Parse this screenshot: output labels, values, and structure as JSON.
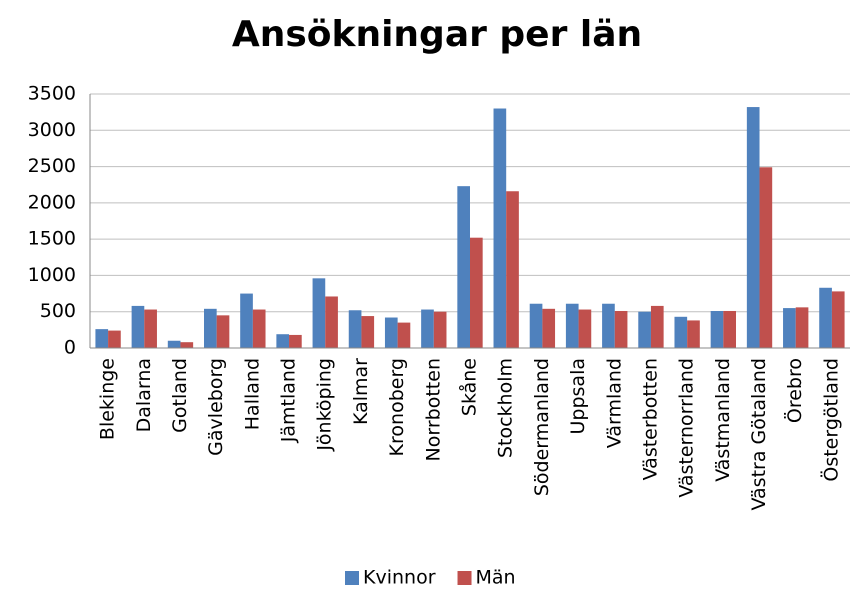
{
  "chart_data": {
    "type": "bar",
    "title": "Ansökningar per län",
    "categories": [
      "Blekinge",
      "Dalarna",
      "Gotland",
      "Gävleborg",
      "Halland",
      "Jämtland",
      "Jönköping",
      "Kalmar",
      "Kronoberg",
      "Norrbotten",
      "Skåne",
      "Stockholm",
      "Södermanland",
      "Uppsala",
      "Värmland",
      "Västerbotten",
      "Västernorrland",
      "Västmanland",
      "Västra Götaland",
      "Örebro",
      "Östergötland"
    ],
    "series": [
      {
        "name": "Kvinnor",
        "color": "#4f81bd",
        "values": [
          260,
          580,
          100,
          540,
          750,
          190,
          960,
          520,
          420,
          530,
          2230,
          3300,
          610,
          610,
          610,
          500,
          430,
          510,
          3320,
          550,
          830
        ]
      },
      {
        "name": "Män",
        "color": "#c0504d",
        "values": [
          240,
          530,
          80,
          450,
          530,
          180,
          710,
          440,
          350,
          500,
          1520,
          2160,
          540,
          530,
          510,
          580,
          380,
          510,
          2490,
          560,
          780
        ]
      }
    ],
    "ylim": [
      0,
      3500
    ],
    "yticks": [
      0,
      500,
      1000,
      1500,
      2000,
      2500,
      3000,
      3500
    ],
    "grid": true,
    "legend": "bottom"
  }
}
